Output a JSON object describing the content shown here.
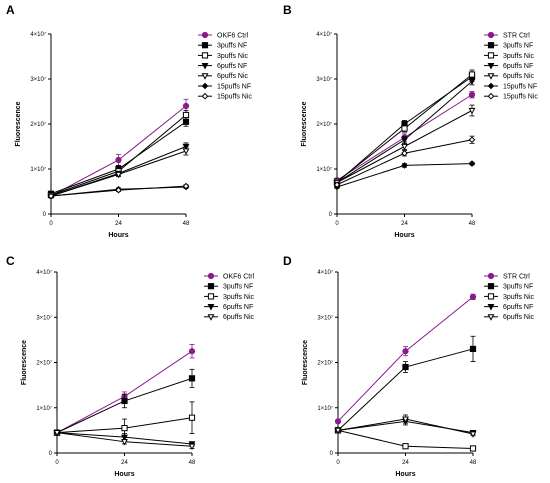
{
  "chart_data": [
    {
      "panel": "A",
      "type": "line",
      "x": [
        0,
        24,
        48
      ],
      "xlabel": "Hours",
      "ylabel": "Fluorescence",
      "xticks": [
        "0",
        "24",
        "48"
      ],
      "yticks": [
        "0",
        "1×10⁷",
        "2×10⁷",
        "3×10⁷",
        "4×10⁷"
      ],
      "ylim": [
        0,
        40000000
      ],
      "legend_position": "right",
      "series": [
        {
          "name": "OKF6 Ctrl",
          "marker": "circle-filled",
          "color": "#8b1a8b",
          "values": [
            4000000,
            12000000,
            24000000
          ],
          "err": [
            300000,
            1200000,
            1500000
          ]
        },
        {
          "name": "3puffs NF",
          "marker": "square-filled",
          "color": "#000000",
          "values": [
            4500000,
            10000000,
            20500000
          ],
          "err": [
            300000,
            800000,
            1000000
          ]
        },
        {
          "name": "3puffs Nic",
          "marker": "square-open",
          "color": "#000000",
          "values": [
            4200000,
            9500000,
            22000000
          ],
          "err": [
            300000,
            600000,
            1000000
          ]
        },
        {
          "name": "6puffs NF",
          "marker": "triangle-down-filled",
          "color": "#000000",
          "values": [
            4000000,
            9000000,
            15000000
          ],
          "err": [
            300000,
            500000,
            800000
          ]
        },
        {
          "name": "6puffs Nic",
          "marker": "triangle-down-open",
          "color": "#000000",
          "values": [
            4000000,
            8800000,
            14000000
          ],
          "err": [
            300000,
            500000,
            900000
          ]
        },
        {
          "name": "15puffs NF",
          "marker": "diamond-filled",
          "color": "#000000",
          "values": [
            4000000,
            5500000,
            6000000
          ],
          "err": [
            200000,
            300000,
            300000
          ]
        },
        {
          "name": "15puffs Nic",
          "marker": "diamond-open",
          "color": "#000000",
          "values": [
            4000000,
            5300000,
            6200000
          ],
          "err": [
            200000,
            300000,
            300000
          ]
        }
      ]
    },
    {
      "panel": "B",
      "type": "line",
      "x": [
        0,
        24,
        48
      ],
      "xlabel": "Hours",
      "ylabel": "Fluorescence",
      "xticks": [
        "0",
        "24",
        "48"
      ],
      "yticks": [
        "0",
        "1×10⁷",
        "2×10⁷",
        "3×10⁷",
        "4×10⁷"
      ],
      "ylim": [
        0,
        40000000
      ],
      "legend_position": "right",
      "series": [
        {
          "name": "STR Ctrl",
          "marker": "circle-filled",
          "color": "#8b1a8b",
          "values": [
            7500000,
            17000000,
            26500000
          ],
          "err": [
            400000,
            800000,
            700000
          ]
        },
        {
          "name": "3puffs NF",
          "marker": "square-filled",
          "color": "#000000",
          "values": [
            7000000,
            20000000,
            30500000
          ],
          "err": [
            400000,
            800000,
            1000000
          ]
        },
        {
          "name": "3puffs Nic",
          "marker": "square-open",
          "color": "#000000",
          "values": [
            7200000,
            19000000,
            31000000
          ],
          "err": [
            400000,
            800000,
            1000000
          ]
        },
        {
          "name": "6puffs NF",
          "marker": "triangle-down-filled",
          "color": "#000000",
          "values": [
            7000000,
            16500000,
            29500000
          ],
          "err": [
            400000,
            700000,
            800000
          ]
        },
        {
          "name": "6puffs Nic",
          "marker": "triangle-down-open",
          "color": "#000000",
          "values": [
            7000000,
            15000000,
            23000000
          ],
          "err": [
            400000,
            700000,
            1200000
          ]
        },
        {
          "name": "15puffs NF",
          "marker": "diamond-filled",
          "color": "#000000",
          "values": [
            6000000,
            10800000,
            11200000
          ],
          "err": [
            300000,
            400000,
            300000
          ]
        },
        {
          "name": "15puffs Nic",
          "marker": "diamond-open",
          "color": "#000000",
          "values": [
            6500000,
            13500000,
            16500000
          ],
          "err": [
            300000,
            600000,
            800000
          ]
        }
      ]
    },
    {
      "panel": "C",
      "type": "line",
      "x": [
        0,
        24,
        48
      ],
      "xlabel": "Hours",
      "ylabel": "Fluorescence",
      "xticks": [
        "0",
        "24",
        "48"
      ],
      "yticks": [
        "0",
        "1×10⁷",
        "2×10⁷",
        "3×10⁷",
        "4×10⁷"
      ],
      "ylim": [
        0,
        40000000
      ],
      "legend_position": "right",
      "series": [
        {
          "name": "OKF6 Ctrl",
          "marker": "circle-filled",
          "color": "#8b1a8b",
          "values": [
            4500000,
            12500000,
            22500000
          ],
          "err": [
            300000,
            1000000,
            1500000
          ]
        },
        {
          "name": "3puffs NF",
          "marker": "square-filled",
          "color": "#000000",
          "values": [
            4500000,
            11500000,
            16500000
          ],
          "err": [
            300000,
            1500000,
            2000000
          ]
        },
        {
          "name": "3puffs Nic",
          "marker": "square-open",
          "color": "#000000",
          "values": [
            4500000,
            5500000,
            7800000
          ],
          "err": [
            300000,
            2000000,
            3500000
          ]
        },
        {
          "name": "6puffs NF",
          "marker": "triangle-down-filled",
          "color": "#000000",
          "values": [
            4500000,
            3500000,
            2000000
          ],
          "err": [
            300000,
            800000,
            500000
          ]
        },
        {
          "name": "6puffs Nic",
          "marker": "triangle-down-open",
          "color": "#000000",
          "values": [
            4500000,
            2500000,
            1500000
          ],
          "err": [
            300000,
            500000,
            500000
          ]
        }
      ]
    },
    {
      "panel": "D",
      "type": "line",
      "x": [
        0,
        24,
        48
      ],
      "xlabel": "Hours",
      "ylabel": "Fluorescence",
      "xticks": [
        "0",
        "24",
        "48"
      ],
      "yticks": [
        "0",
        "1×10⁷",
        "2×10⁷",
        "3×10⁷",
        "4×10⁷"
      ],
      "ylim": [
        0,
        40000000
      ],
      "legend_position": "right",
      "series": [
        {
          "name": "STR Ctrl",
          "marker": "circle-filled",
          "color": "#8b1a8b",
          "values": [
            7000000,
            22500000,
            34500000
          ],
          "err": [
            400000,
            1000000,
            600000
          ]
        },
        {
          "name": "3puffs NF",
          "marker": "square-filled",
          "color": "#000000",
          "values": [
            5000000,
            19000000,
            23000000
          ],
          "err": [
            400000,
            1200000,
            2800000
          ]
        },
        {
          "name": "3puffs Nic",
          "marker": "square-open",
          "color": "#000000",
          "values": [
            5000000,
            1500000,
            1000000
          ],
          "err": [
            300000,
            300000,
            300000
          ]
        },
        {
          "name": "6puffs NF",
          "marker": "triangle-down-filled",
          "color": "#000000",
          "values": [
            5000000,
            7000000,
            4500000
          ],
          "err": [
            300000,
            800000,
            400000
          ]
        },
        {
          "name": "6puffs Nic",
          "marker": "triangle-down-open",
          "color": "#000000",
          "values": [
            5000000,
            7500000,
            4200000
          ],
          "err": [
            300000,
            900000,
            400000
          ]
        }
      ]
    }
  ]
}
